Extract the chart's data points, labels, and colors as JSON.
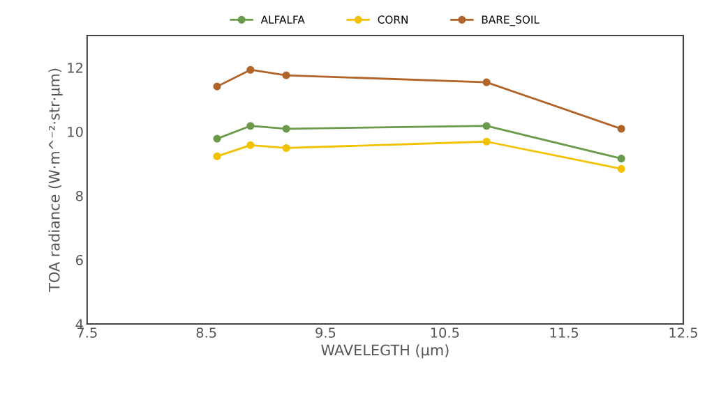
{
  "chart_data": {
    "type": "line",
    "xlabel": "WAVELEGTH (µm)",
    "ylabel": "TOA radiance (W·m^⁻²·str·µm)",
    "x": [
      8.59,
      8.87,
      9.17,
      10.85,
      11.98
    ],
    "series": [
      {
        "name": "ALFALFA",
        "color": "#6b9a4b",
        "values": [
          9.78,
          10.18,
          10.09,
          10.18,
          9.16
        ]
      },
      {
        "name": "CORN",
        "color": "#f2c200",
        "values": [
          9.23,
          9.58,
          9.49,
          9.69,
          8.84
        ]
      },
      {
        "name": "BARE_SOIL",
        "color": "#b0642a",
        "values": [
          11.41,
          11.93,
          11.76,
          11.54,
          10.09
        ]
      }
    ],
    "xlim": [
      7.5,
      12.5
    ],
    "xticks": [
      7.5,
      8.5,
      9.5,
      10.5,
      11.5,
      12.5
    ],
    "ylim": [
      4,
      13
    ],
    "yticks": [
      4,
      6,
      8,
      10,
      12
    ],
    "grid": false,
    "legend": "top",
    "marker": "circle",
    "line_style": "solid"
  }
}
